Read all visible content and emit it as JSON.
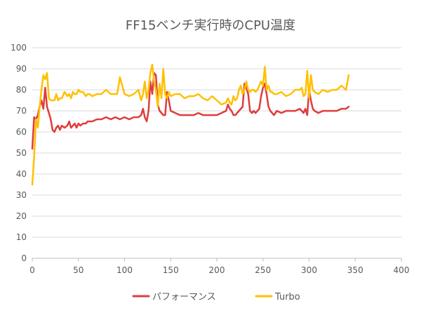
{
  "chart_data": {
    "type": "line",
    "title": "FF15ベンチ実行時のCPU温度",
    "xlabel": "",
    "ylabel": "",
    "xlim": [
      0,
      400
    ],
    "ylim": [
      0,
      100
    ],
    "x_ticks": [
      0,
      50,
      100,
      150,
      200,
      250,
      300,
      350,
      400
    ],
    "y_ticks": [
      0,
      10,
      20,
      30,
      40,
      50,
      60,
      70,
      80,
      90,
      100
    ],
    "grid": "horizontal",
    "legend_position": "bottom",
    "series": [
      {
        "name": "パフォーマンス",
        "color": "#e03c3c",
        "x": [
          0,
          2,
          4,
          6,
          8,
          10,
          12,
          14,
          16,
          18,
          20,
          22,
          24,
          26,
          28,
          30,
          32,
          35,
          38,
          40,
          42,
          44,
          46,
          48,
          50,
          52,
          55,
          58,
          60,
          62,
          65,
          70,
          75,
          80,
          85,
          90,
          95,
          100,
          105,
          110,
          115,
          118,
          120,
          122,
          124,
          126,
          128,
          130,
          132,
          134,
          136,
          138,
          140,
          142,
          144,
          146,
          148,
          150,
          155,
          160,
          165,
          170,
          175,
          180,
          185,
          190,
          195,
          200,
          205,
          210,
          212,
          214,
          216,
          218,
          220,
          222,
          224,
          226,
          228,
          230,
          232,
          234,
          236,
          238,
          240,
          242,
          244,
          246,
          248,
          250,
          252,
          254,
          256,
          258,
          260,
          262,
          265,
          270,
          275,
          280,
          285,
          290,
          292,
          294,
          296,
          298,
          300,
          302,
          304,
          306,
          310,
          315,
          320,
          325,
          330,
          335,
          340,
          343
        ],
        "y": [
          52,
          67,
          66,
          68,
          72,
          75,
          71,
          81,
          72,
          69,
          66,
          61,
          60,
          62,
          63,
          61,
          63,
          62,
          63,
          65,
          62,
          63,
          64,
          62,
          64,
          63,
          64,
          64,
          65,
          65,
          65,
          66,
          66,
          67,
          66,
          67,
          66,
          67,
          66,
          67,
          67,
          68,
          71,
          67,
          65,
          70,
          84,
          78,
          88,
          87,
          73,
          70,
          69,
          68,
          68,
          79,
          75,
          70,
          69,
          68,
          68,
          68,
          68,
          69,
          68,
          68,
          68,
          68,
          69,
          70,
          73,
          71,
          70,
          68,
          68,
          69,
          70,
          71,
          72,
          83,
          81,
          78,
          70,
          69,
          70,
          69,
          70,
          71,
          77,
          81,
          83,
          78,
          72,
          70,
          69,
          68,
          70,
          69,
          70,
          70,
          70,
          71,
          70,
          69,
          71,
          68,
          80,
          75,
          71,
          70,
          69,
          70,
          70,
          70,
          70,
          71,
          71,
          72
        ]
      },
      {
        "name": "Turbo",
        "color": "#ffc000",
        "x": [
          0,
          2,
          4,
          6,
          8,
          10,
          12,
          14,
          16,
          18,
          20,
          22,
          24,
          26,
          28,
          30,
          32,
          35,
          38,
          40,
          42,
          44,
          46,
          48,
          50,
          52,
          55,
          58,
          60,
          62,
          65,
          70,
          75,
          80,
          85,
          90,
          92,
          95,
          100,
          105,
          110,
          115,
          118,
          120,
          122,
          124,
          126,
          128,
          130,
          132,
          134,
          136,
          138,
          140,
          142,
          144,
          146,
          148,
          150,
          155,
          160,
          165,
          170,
          175,
          180,
          185,
          190,
          195,
          200,
          205,
          210,
          212,
          214,
          216,
          218,
          220,
          222,
          224,
          226,
          228,
          230,
          232,
          234,
          236,
          238,
          240,
          242,
          244,
          246,
          248,
          250,
          252,
          254,
          256,
          258,
          260,
          262,
          265,
          270,
          275,
          280,
          285,
          290,
          292,
          294,
          296,
          298,
          300,
          302,
          304,
          306,
          310,
          315,
          320,
          325,
          330,
          335,
          340,
          343
        ],
        "y": [
          35,
          48,
          66,
          62,
          72,
          80,
          87,
          85,
          88,
          76,
          75,
          75,
          75,
          78,
          75,
          76,
          76,
          79,
          77,
          78,
          76,
          79,
          78,
          78,
          80,
          79,
          79,
          77,
          78,
          78,
          77,
          78,
          78,
          80,
          78,
          78,
          78,
          86,
          78,
          77,
          78,
          80,
          75,
          78,
          84,
          76,
          80,
          88,
          92,
          84,
          80,
          72,
          83,
          76,
          90,
          78,
          76,
          79,
          77,
          78,
          78,
          76,
          77,
          77,
          78,
          76,
          75,
          77,
          75,
          73,
          74,
          76,
          74,
          73,
          77,
          75,
          76,
          80,
          82,
          78,
          80,
          84,
          80,
          79,
          80,
          80,
          79,
          80,
          82,
          84,
          82,
          91,
          80,
          82,
          79,
          79,
          78,
          78,
          79,
          77,
          78,
          80,
          80,
          81,
          77,
          78,
          89,
          76,
          87,
          80,
          79,
          78,
          80,
          79,
          80,
          80,
          82,
          80,
          87
        ]
      }
    ]
  }
}
